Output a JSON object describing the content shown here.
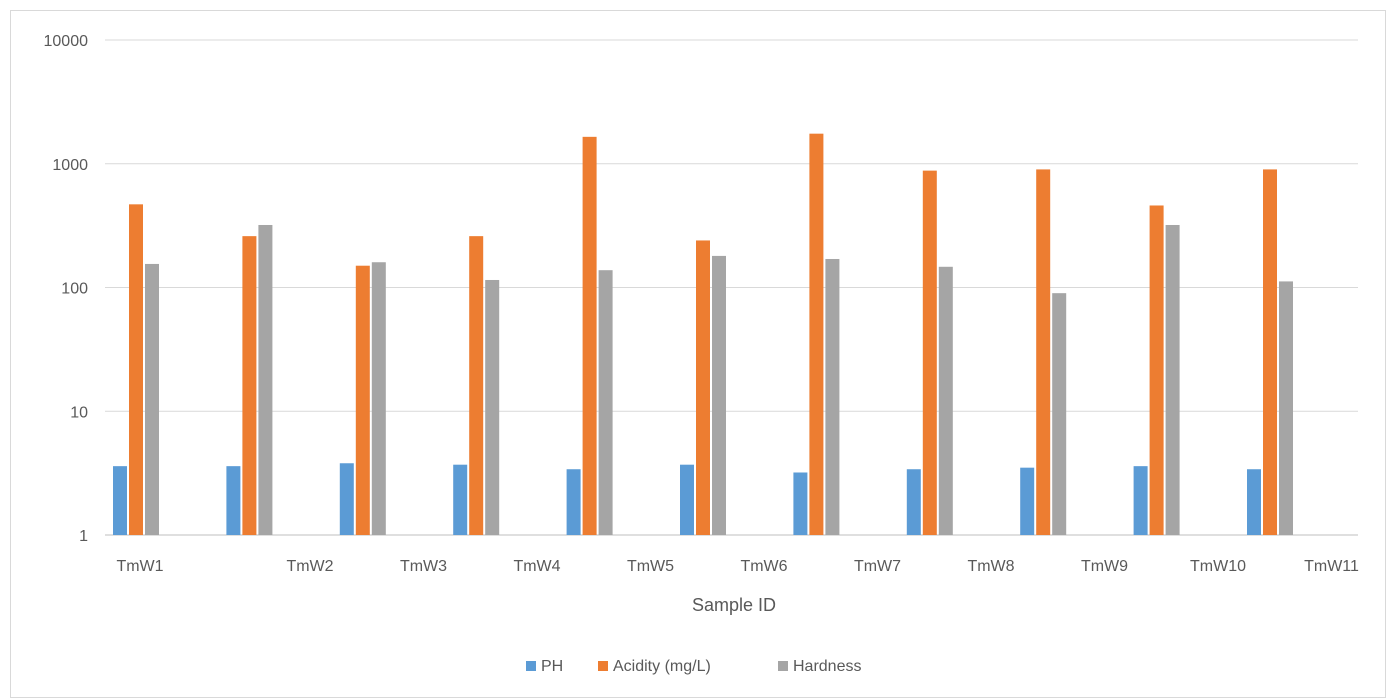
{
  "chart_data": {
    "type": "bar",
    "title": "",
    "xlabel": "Sample ID",
    "ylabel": "",
    "yscale": "log",
    "ylim": [
      1,
      10000
    ],
    "yticks": [
      1,
      10,
      100,
      1000,
      10000
    ],
    "ytick_labels": [
      "1",
      "10",
      "100",
      "1000",
      "10000"
    ],
    "grid": true,
    "legend_position": "bottom",
    "x_tick_labels": [
      "TmW1",
      "TmW2",
      "TmW3",
      "TmW4",
      "TmW5",
      "TmW6",
      "TmW7",
      "TmW8",
      "TmW9",
      "TmW10",
      "TmW11"
    ],
    "series": [
      {
        "name": "PH",
        "color": "#5b9bd5",
        "values": [
          3.6,
          3.6,
          3.8,
          3.7,
          3.4,
          3.7,
          3.2,
          3.4,
          3.5,
          3.6,
          3.4
        ]
      },
      {
        "name": "Acidity (mg/L)",
        "color": "#ed7d31",
        "values": [
          470,
          260,
          150,
          260,
          1650,
          240,
          1750,
          880,
          900,
          460,
          900
        ]
      },
      {
        "name": "Hardness",
        "color": "#a5a5a5",
        "values": [
          155,
          320,
          160,
          115,
          138,
          180,
          170,
          147,
          90,
          320,
          112
        ]
      }
    ]
  }
}
